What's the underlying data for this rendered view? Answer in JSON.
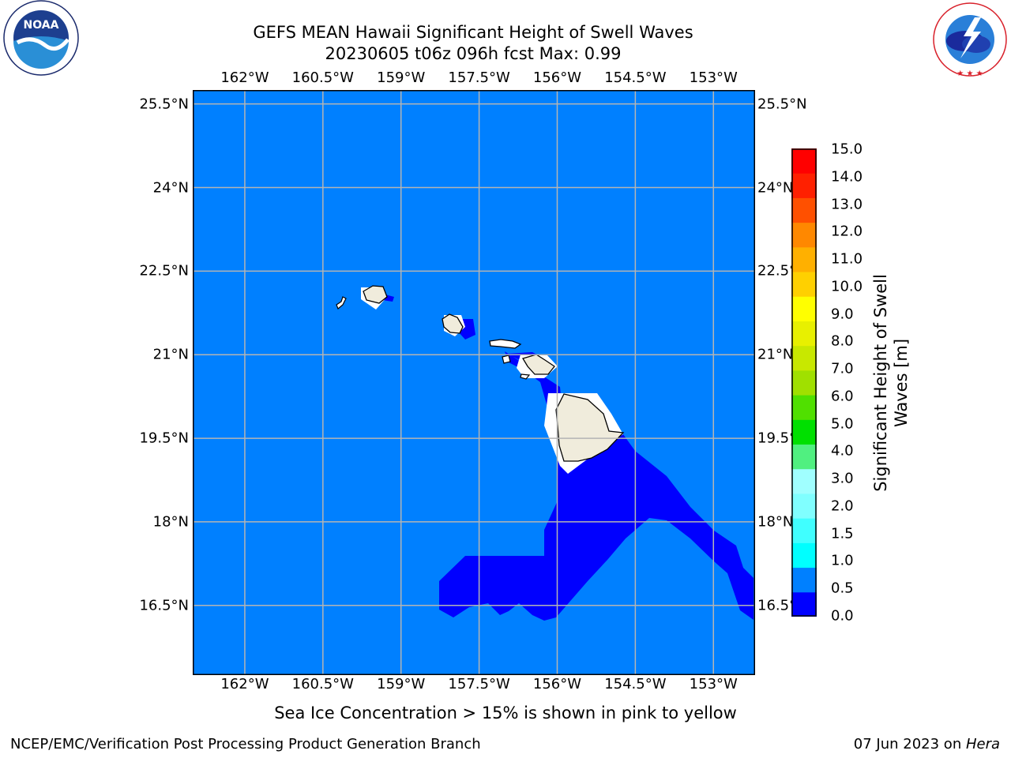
{
  "title": {
    "line1": "GEFS MEAN Hawaii Significant Height of Swell Waves",
    "line2": "20230605 t06z 096h fcst   Max: 0.99"
  },
  "logos": {
    "noaa": {
      "icon": "noaa-logo",
      "text": "NOAA",
      "ring_text": "NATIONAL OCEANIC AND ATMOSPHERIC ADMINISTRATION · U.S. DEPARTMENT OF COMMERCE"
    },
    "nws": {
      "icon": "nws-logo",
      "ring_text": "NATIONAL WEATHER SERVICE"
    }
  },
  "map": {
    "lon_labels": [
      "162°W",
      "160.5°W",
      "159°W",
      "157.5°W",
      "156°W",
      "154.5°W",
      "153°W"
    ],
    "lat_labels": [
      "25.5°N",
      "24°N",
      "22.5°N",
      "21°N",
      "19.5°N",
      "18°N",
      "16.5°N"
    ],
    "lon_values": [
      -162,
      -160.5,
      -159,
      -157.5,
      -156,
      -154.5,
      -153
    ],
    "lat_values": [
      25.5,
      24,
      22.5,
      21,
      19.5,
      18,
      16.5
    ],
    "extent": {
      "lon": [
        -163,
        -152.2
      ],
      "lat": [
        15.25,
        25.75
      ]
    },
    "colors": {
      "ocean_0_5_to_1_0": "#0080ff",
      "ocean_0_0_to_0_5": "#0000ff",
      "land": "#f0ecdc",
      "grid": "#b4b4b4"
    }
  },
  "colorbar": {
    "ticks": [
      "0.0",
      "0.5",
      "1.0",
      "1.5",
      "2.0",
      "3.0",
      "4.0",
      "5.0",
      "6.0",
      "7.0",
      "8.0",
      "9.0",
      "10.0",
      "11.0",
      "12.0",
      "13.0",
      "14.0",
      "15.0"
    ],
    "colors": [
      "#0000ff",
      "#0080ff",
      "#00ffff",
      "#40ffff",
      "#80ffff",
      "#a0ffff",
      "#50f080",
      "#00e000",
      "#50e000",
      "#a0e000",
      "#c8e800",
      "#e8f000",
      "#ffff00",
      "#ffd000",
      "#ffb000",
      "#ff8800",
      "#ff5000",
      "#ff2000",
      "#ff0000"
    ],
    "label_line1": "Significant Height of Swell",
    "label_line2": "Waves [m]"
  },
  "sea_ice_note": "Sea Ice Concentration > 15% is shown in pink to yellow",
  "footer": {
    "left": "NCEP/EMC/Verification Post Processing Product Generation Branch",
    "right_date": "07 Jun 2023 on ",
    "right_host": "Hera"
  }
}
